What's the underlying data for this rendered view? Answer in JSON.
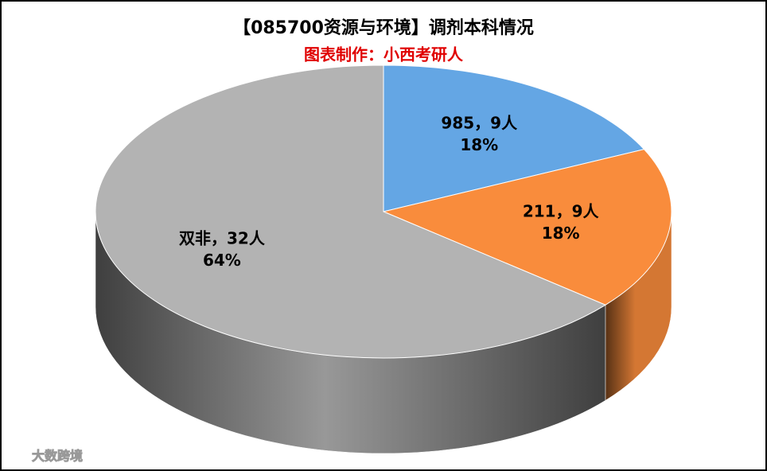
{
  "chart_data": {
    "type": "pie3d",
    "title": "【085700资源与环境】调剂本科情况",
    "subtitle": "图表制作：小西考研人",
    "categories": [
      "985",
      "211",
      "双非"
    ],
    "label_separator": "，",
    "values": [
      9,
      9,
      32
    ],
    "value_labels": [
      "9人",
      "9人",
      "32人"
    ],
    "percents": [
      18,
      18,
      64
    ],
    "percent_labels": [
      "18%",
      "18%",
      "64%"
    ],
    "colors": [
      "#64a6e4",
      "#f98c3c",
      "#b3b3b3"
    ],
    "watermark": "大数跨境"
  }
}
